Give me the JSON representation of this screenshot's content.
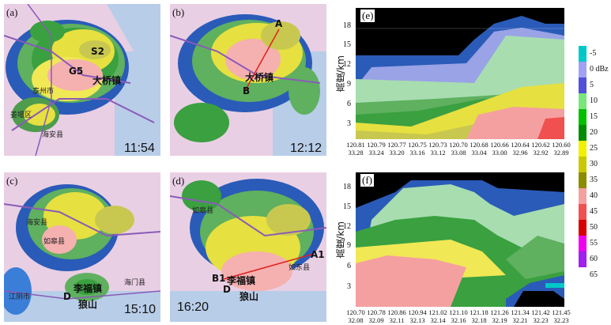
{
  "panels": {
    "a": {
      "letter": "(a)",
      "time": "11:54",
      "labels": [
        "S2",
        "G5",
        "大桥镇"
      ],
      "counties": [
        "泰州市",
        "姜堰区",
        "海安县"
      ]
    },
    "b": {
      "letter": "(b)",
      "time": "12:12",
      "labels": [
        "A",
        "大桥镇",
        "B"
      ],
      "counties": []
    },
    "c": {
      "letter": "(c)",
      "time": "15:10",
      "labels": [
        "D",
        "李福镇",
        "狼山"
      ],
      "counties": [
        "海安县",
        "如皋县",
        "海门县",
        "江阴市"
      ]
    },
    "d": {
      "letter": "(d)",
      "time": "16:20",
      "labels": [
        "A1",
        "B1",
        "李福镇",
        "D",
        "狼山"
      ],
      "counties": [
        "如皋县",
        "如东县"
      ]
    },
    "e": {
      "letter": "(e)"
    },
    "f": {
      "letter": "(f)"
    }
  },
  "cross_section": {
    "ylabel": "高度/km",
    "yticks": [
      "3",
      "6",
      "9",
      "12",
      "15",
      "18"
    ],
    "e_xticks": [
      [
        "120.81",
        "33.28"
      ],
      [
        "120.79",
        "33.24"
      ],
      [
        "120.77",
        "33.20"
      ],
      [
        "120.75",
        "33.16"
      ],
      [
        "120.73",
        "33.12"
      ],
      [
        "120.70",
        "33.08"
      ],
      [
        "120.68",
        "33.04"
      ],
      [
        "120.66",
        "33.00"
      ],
      [
        "120.64",
        "32.96"
      ],
      [
        "120.62",
        "32.92"
      ],
      [
        "120.60",
        "32.89"
      ]
    ],
    "f_xticks": [
      [
        "120.70",
        "32.08"
      ],
      [
        "120.78",
        "32.09"
      ],
      [
        "120.86",
        "32.11"
      ],
      [
        "120.94",
        "32.13"
      ],
      [
        "121.02",
        "32.14"
      ],
      [
        "121.10",
        "32.16"
      ],
      [
        "121.18",
        "32.18"
      ],
      [
        "121.26",
        "32.19"
      ],
      [
        "121.34",
        "32.21"
      ],
      [
        "121.42",
        "32.23"
      ],
      [
        "121.45",
        "32.23"
      ]
    ]
  },
  "colorbar": {
    "unit": "dBz",
    "labels": [
      "-5",
      "0",
      "5",
      "10",
      "15",
      "20",
      "25",
      "30",
      "35",
      "40",
      "45",
      "50",
      "55",
      "60",
      "65"
    ],
    "colors": [
      "#00c8c8",
      "#a0a0f5",
      "#5050dc",
      "#78e678",
      "#00c000",
      "#008c00",
      "#f0f000",
      "#c8c800",
      "#8c8c00",
      "#f5a0a0",
      "#f05050",
      "#d80000",
      "#f000f0",
      "#a020f0"
    ]
  }
}
